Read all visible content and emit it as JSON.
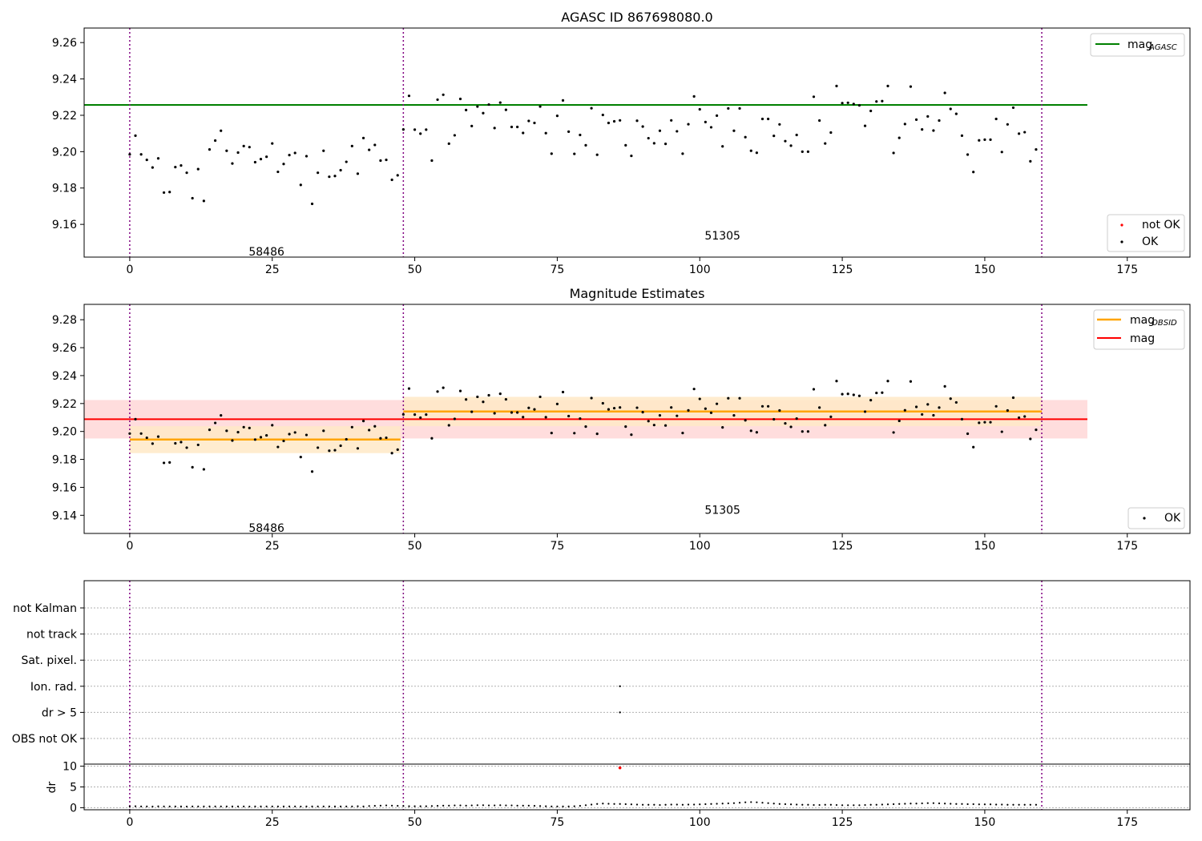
{
  "chart_data": [
    {
      "type": "scatter",
      "title": "AGASC ID 867698080.0",
      "xlim": [
        -8,
        186
      ],
      "ylim": [
        9.142,
        9.268
      ],
      "xticks": [
        0,
        25,
        50,
        75,
        100,
        125,
        150,
        175
      ],
      "yticks": [
        "9.16",
        "9.18",
        "9.20",
        "9.22",
        "9.24",
        "9.26"
      ],
      "obsid_boundaries": [
        0,
        48,
        160
      ],
      "obsid_labels": [
        {
          "text": "58486",
          "x": 24,
          "y": 9.145
        },
        {
          "text": "51305",
          "x": 104,
          "y": 9.154
        }
      ],
      "reference_line": {
        "name": "mag",
        "subscript": "AGASC",
        "value": 9.2257,
        "x_end": 168,
        "color": "#008000"
      },
      "legend_lines_location": "upper right",
      "legend_points_location": "lower right",
      "series": [
        {
          "name": "not OK",
          "color": "#ff0000",
          "count": 0
        },
        {
          "name": "OK",
          "color": "#000000"
        }
      ]
    },
    {
      "type": "scatter",
      "title": "Magnitude Estimates",
      "xlim": [
        -8,
        186
      ],
      "ylim": [
        9.127,
        9.291
      ],
      "xticks": [
        0,
        25,
        50,
        75,
        100,
        125,
        150,
        175
      ],
      "yticks": [
        "9.14",
        "9.16",
        "9.18",
        "9.20",
        "9.22",
        "9.24",
        "9.26",
        "9.28"
      ],
      "obsid_boundaries": [
        0,
        48,
        160
      ],
      "obsid_labels": [
        {
          "text": "58486",
          "x": 24,
          "y": 9.131
        },
        {
          "text": "51305",
          "x": 104,
          "y": 9.144
        }
      ],
      "mag_line": {
        "name": "mag",
        "value": 9.2088,
        "band": [
          9.195,
          9.2225
        ],
        "x_end": 168,
        "color": "#ff0000",
        "band_color": "#ffdddd"
      },
      "mag_obsid_segments": [
        {
          "x_start": 0,
          "x_end": 47.5,
          "value": 9.1942,
          "band": [
            9.1845,
            9.2038
          ]
        },
        {
          "x_start": 48,
          "x_end": 160,
          "value": 9.2143,
          "band": [
            9.2038,
            9.2248
          ]
        }
      ],
      "mag_obsid_style": {
        "name": "mag",
        "subscript": "OBSID",
        "color": "#ffa500",
        "band_color": "#ffe9c7"
      },
      "legend_lines_location": "upper right",
      "legend_points_location": "lower right",
      "series": [
        {
          "name": "OK",
          "color": "#000000"
        }
      ]
    },
    {
      "type": "scatter",
      "xlim": [
        -8,
        186
      ],
      "xticks": [
        0,
        25,
        50,
        75,
        100,
        125,
        150,
        175
      ],
      "obsid_boundaries": [
        0,
        48,
        160
      ],
      "flag_categories": [
        "not Kalman",
        "not track",
        "Sat. pixel.",
        "Ion. rad.",
        "dr > 5",
        "OBS not OK"
      ],
      "flag_points": [
        {
          "category": "Ion. rad.",
          "x": 86
        },
        {
          "category": "dr > 5",
          "x": 86
        }
      ],
      "dr_panel": {
        "ylabel": "dr",
        "yticks": [
          "0",
          "5",
          "10"
        ],
        "ylim": [
          -0.5,
          10.5
        ],
        "outlier": {
          "x": 86,
          "y": 9.6,
          "color": "#ff0000"
        }
      }
    }
  ],
  "ok_magnitudes": [
    9.1985,
    9.2088,
    9.1985,
    9.1955,
    9.1913,
    9.1963,
    9.1775,
    9.1778,
    9.1915,
    9.1924,
    9.1884,
    9.1744,
    9.1904,
    9.1729,
    9.2012,
    9.2061,
    9.2115,
    9.2005,
    9.1935,
    9.1995,
    9.2031,
    9.2025,
    9.1942,
    9.1959,
    9.1972,
    9.2045,
    9.1889,
    9.1932,
    9.1981,
    9.1993,
    9.1817,
    9.1975,
    9.1713,
    9.1884,
    9.2005,
    9.1862,
    9.1866,
    9.1898,
    9.1944,
    9.2031,
    9.1879,
    9.2075,
    9.201,
    9.2037,
    9.1951,
    9.1955,
    9.1845,
    9.187,
    9.2122,
    9.2307,
    9.2121,
    9.2099,
    9.2121,
    9.1951,
    9.2286,
    9.2313,
    9.2044,
    9.209,
    9.229,
    9.2229,
    9.2141,
    9.2248,
    9.2212,
    9.2259,
    9.213,
    9.227,
    9.223,
    9.2136,
    9.2136,
    9.2103,
    9.2169,
    9.2158,
    9.2248,
    9.2102,
    9.1989,
    9.2197,
    9.2282,
    9.211,
    9.1988,
    9.2092,
    9.2035,
    9.2239,
    9.1983,
    9.2202,
    9.2158,
    9.2167,
    9.2172,
    9.2035,
    9.1977,
    9.217,
    9.2138,
    9.2074,
    9.2046,
    9.2115,
    9.2043,
    9.2172,
    9.2112,
    9.1989,
    9.2151,
    9.2304,
    9.2233,
    9.2163,
    9.2134,
    9.2198,
    9.2029,
    9.2238,
    9.2115,
    9.2238,
    9.208,
    9.2005,
    9.1994,
    9.218,
    9.218,
    9.2087,
    9.215,
    9.2058,
    9.2033,
    9.2092,
    9.2,
    9.2,
    9.2302,
    9.2171,
    9.2045,
    9.2105,
    9.2361,
    9.2267,
    9.2269,
    9.2262,
    9.2255,
    9.2142,
    9.2224,
    9.2276,
    9.2278,
    9.2361,
    9.1993,
    9.2076,
    9.2152,
    9.2358,
    9.2176,
    9.2122,
    9.2194,
    9.2116,
    9.2171,
    9.2323,
    9.2235,
    9.2208,
    9.2088,
    9.1984,
    9.1888,
    9.2062,
    9.2066,
    9.2066,
    9.218,
    9.1998,
    9.215,
    9.2242,
    9.2099,
    9.2107,
    9.1947,
    9.2012
  ],
  "dr_values": [
    0.3,
    0.35,
    0.3,
    0.3,
    0.28,
    0.32,
    0.3,
    0.3,
    0.3,
    0.3,
    0.28,
    0.3,
    0.3,
    0.3,
    0.3,
    0.3,
    0.3,
    0.3,
    0.3,
    0.3,
    0.3,
    0.28,
    0.3,
    0.3,
    0.3,
    0.3,
    0.3,
    0.3,
    0.3,
    0.3,
    0.28,
    0.3,
    0.3,
    0.3,
    0.3,
    0.3,
    0.3,
    0.3,
    0.3,
    0.3,
    0.35,
    0.3,
    0.4,
    0.45,
    0.5,
    0.55,
    0.5,
    0.45,
    0.4,
    0.35,
    0.35,
    0.35,
    0.35,
    0.4,
    0.45,
    0.5,
    0.5,
    0.55,
    0.55,
    0.5,
    0.55,
    0.6,
    0.6,
    0.55,
    0.55,
    0.6,
    0.55,
    0.55,
    0.5,
    0.5,
    0.5,
    0.45,
    0.4,
    0.35,
    0.3,
    0.3,
    0.3,
    0.3,
    0.35,
    0.45,
    0.6,
    0.75,
    0.9,
    1.0,
    0.95,
    0.9,
    0.9,
    0.85,
    0.8,
    0.75,
    0.7,
    0.7,
    0.7,
    0.65,
    0.7,
    0.75,
    0.75,
    0.7,
    0.75,
    0.75,
    0.8,
    0.85,
    0.9,
    0.95,
    1.0,
    1.05,
    1.1,
    1.2,
    1.3,
    1.35,
    1.3,
    1.2,
    1.1,
    1.0,
    0.9,
    0.85,
    0.8,
    0.75,
    0.7,
    0.7,
    0.65,
    0.65,
    0.7,
    0.7,
    0.65,
    0.6,
    0.6,
    0.6,
    0.6,
    0.65,
    0.7,
    0.7,
    0.75,
    0.8,
    0.85,
    0.9,
    0.95,
    1.0,
    1.0,
    1.05,
    1.1,
    1.1,
    1.05,
    1.0,
    0.95,
    0.9,
    0.9,
    0.85,
    0.85,
    0.8,
    0.8,
    0.8,
    0.75,
    0.75,
    0.7,
    0.7,
    0.7,
    0.7,
    0.7,
    0.7
  ]
}
